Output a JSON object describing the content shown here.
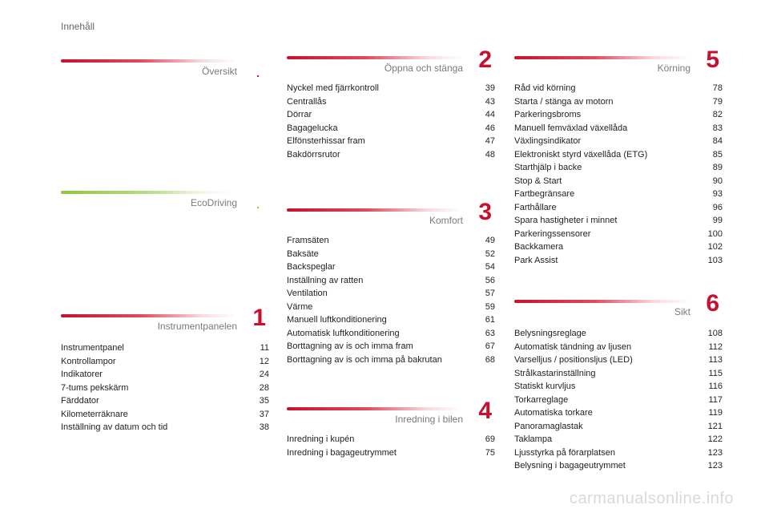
{
  "page_title": "Innehåll",
  "watermark": "carmanualsonline.info",
  "sections": {
    "oversikt": {
      "title": "Översikt",
      "number": "."
    },
    "ecodriving": {
      "title": "EcoDriving",
      "number": "."
    },
    "instrumentpanelen": {
      "title": "Instrumentpanelen",
      "number": "1",
      "items": [
        {
          "label": "Instrumentpanel",
          "page": "11"
        },
        {
          "label": "Kontrollampor",
          "page": "12"
        },
        {
          "label": "Indikatorer",
          "page": "24"
        },
        {
          "label": "7-tums pekskärm",
          "page": "28"
        },
        {
          "label": "Färddator",
          "page": "35"
        },
        {
          "label": "Kilometerräknare",
          "page": "37"
        },
        {
          "label": "Inställning av datum och tid",
          "page": "38"
        }
      ]
    },
    "oppna": {
      "title": "Öppna och stänga",
      "number": "2",
      "items": [
        {
          "label": "Nyckel med fjärrkontroll",
          "page": "39"
        },
        {
          "label": "Centrallås",
          "page": "43"
        },
        {
          "label": "Dörrar",
          "page": "44"
        },
        {
          "label": "Bagagelucka",
          "page": "46"
        },
        {
          "label": "Elfönsterhissar fram",
          "page": "47"
        },
        {
          "label": "Bakdörrsrutor",
          "page": "48"
        }
      ]
    },
    "komfort": {
      "title": "Komfort",
      "number": "3",
      "items": [
        {
          "label": "Framsäten",
          "page": "49"
        },
        {
          "label": "Baksäte",
          "page": "52"
        },
        {
          "label": "Backspeglar",
          "page": "54"
        },
        {
          "label": "Inställning av ratten",
          "page": "56"
        },
        {
          "label": "Ventilation",
          "page": "57"
        },
        {
          "label": "Värme",
          "page": "59"
        },
        {
          "label": "Manuell luftkonditionering",
          "page": "61"
        },
        {
          "label": "Automatisk luftkonditionering",
          "page": "63"
        },
        {
          "label": "Borttagning av is och imma fram",
          "page": "67"
        },
        {
          "label": "Borttagning av is och imma på bakrutan",
          "page": "68"
        }
      ]
    },
    "inredning": {
      "title": "Inredning i bilen",
      "number": "4",
      "items": [
        {
          "label": "Inredning i kupén",
          "page": "69"
        },
        {
          "label": "Inredning i bagageutrymmet",
          "page": "75"
        }
      ]
    },
    "korning": {
      "title": "Körning",
      "number": "5",
      "items": [
        {
          "label": "Råd vid körning",
          "page": "78"
        },
        {
          "label": "Starta / stänga av motorn",
          "page": "79"
        },
        {
          "label": "Parkeringsbroms",
          "page": "82"
        },
        {
          "label": "Manuell femväxlad växellåda",
          "page": "83"
        },
        {
          "label": "Växlingsindikator",
          "page": "84"
        },
        {
          "label": "Elektroniskt styrd växellåda (ETG)",
          "page": "85"
        },
        {
          "label": "Starthjälp i backe",
          "page": "89"
        },
        {
          "label": "Stop & Start",
          "page": "90"
        },
        {
          "label": "Fartbegränsare",
          "page": "93"
        },
        {
          "label": "Farthållare",
          "page": "96"
        },
        {
          "label": "Spara hastigheter i minnet",
          "page": "99"
        },
        {
          "label": "Parkeringssensorer",
          "page": "100"
        },
        {
          "label": "Backkamera",
          "page": "102"
        },
        {
          "label": "Park Assist",
          "page": "103"
        }
      ]
    },
    "sikt": {
      "title": "Sikt",
      "number": "6",
      "items": [
        {
          "label": "Belysningsreglage",
          "page": "108"
        },
        {
          "label": "Automatisk tändning av ljusen",
          "page": "112"
        },
        {
          "label": "Varselljus / positionsljus (LED)",
          "page": "113"
        },
        {
          "label": "Strålkastarinställning",
          "page": "115"
        },
        {
          "label": "Statiskt kurvljus",
          "page": "116"
        },
        {
          "label": "Torkarreglage",
          "page": "117"
        },
        {
          "label": "Automatiska torkare",
          "page": "119"
        },
        {
          "label": "Panoramaglastak",
          "page": "121"
        },
        {
          "label": "Taklampa",
          "page": "122"
        },
        {
          "label": "Ljusstyrka på förarplatsen",
          "page": "123"
        },
        {
          "label": "Belysning i bagageutrymmet",
          "page": "123"
        }
      ]
    }
  }
}
